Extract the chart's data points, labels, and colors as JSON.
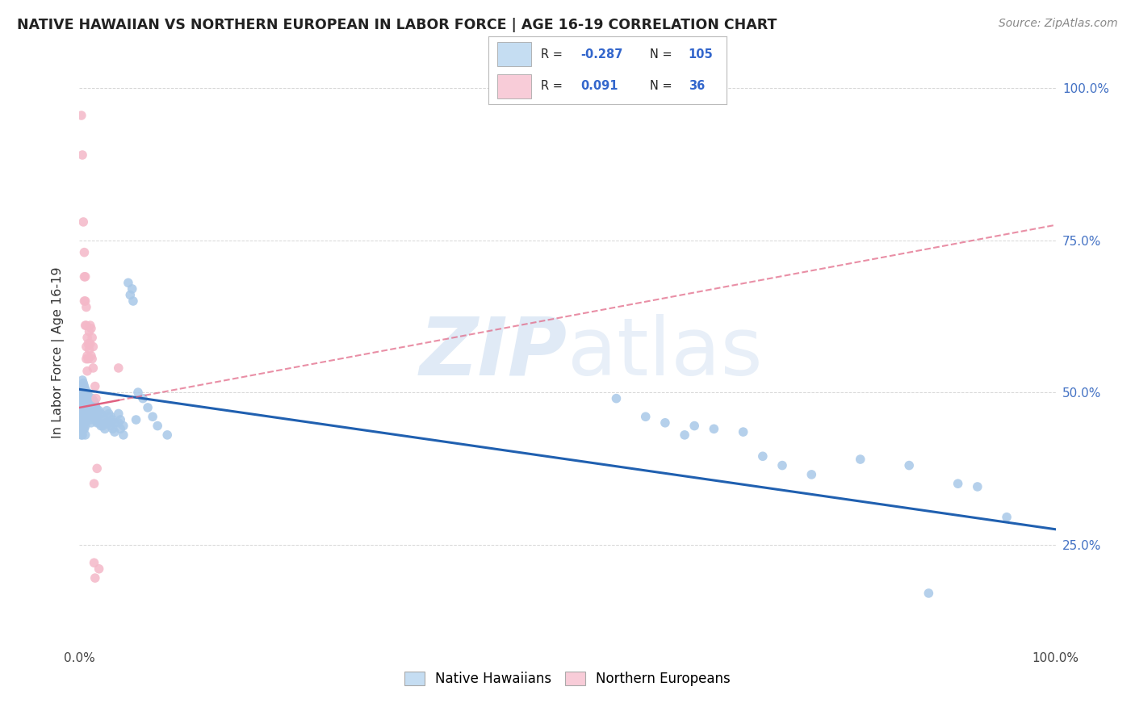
{
  "title": "NATIVE HAWAIIAN VS NORTHERN EUROPEAN IN LABOR FORCE | AGE 16-19 CORRELATION CHART",
  "source": "Source: ZipAtlas.com",
  "ylabel": "In Labor Force | Age 16-19",
  "watermark_zip": "ZIP",
  "watermark_atlas": "atlas",
  "blue_color": "#a8c8e8",
  "pink_color": "#f4b8c8",
  "blue_line_color": "#2060b0",
  "pink_line_color": "#e06080",
  "blue_trend_start": 0.505,
  "blue_trend_end": 0.275,
  "pink_trend_start": 0.475,
  "pink_trend_end": 0.775,
  "blue_scatter": [
    [
      0.001,
      0.485
    ],
    [
      0.001,
      0.475
    ],
    [
      0.001,
      0.465
    ],
    [
      0.001,
      0.455
    ],
    [
      0.002,
      0.51
    ],
    [
      0.002,
      0.495
    ],
    [
      0.002,
      0.48
    ],
    [
      0.002,
      0.465
    ],
    [
      0.002,
      0.45
    ],
    [
      0.002,
      0.44
    ],
    [
      0.002,
      0.43
    ],
    [
      0.003,
      0.52
    ],
    [
      0.003,
      0.505
    ],
    [
      0.003,
      0.49
    ],
    [
      0.003,
      0.475
    ],
    [
      0.003,
      0.46
    ],
    [
      0.003,
      0.445
    ],
    [
      0.003,
      0.43
    ],
    [
      0.004,
      0.515
    ],
    [
      0.004,
      0.5
    ],
    [
      0.004,
      0.485
    ],
    [
      0.004,
      0.47
    ],
    [
      0.004,
      0.455
    ],
    [
      0.004,
      0.44
    ],
    [
      0.005,
      0.51
    ],
    [
      0.005,
      0.495
    ],
    [
      0.005,
      0.48
    ],
    [
      0.005,
      0.465
    ],
    [
      0.005,
      0.45
    ],
    [
      0.005,
      0.44
    ],
    [
      0.006,
      0.505
    ],
    [
      0.006,
      0.49
    ],
    [
      0.006,
      0.475
    ],
    [
      0.006,
      0.46
    ],
    [
      0.006,
      0.445
    ],
    [
      0.006,
      0.43
    ],
    [
      0.007,
      0.5
    ],
    [
      0.007,
      0.485
    ],
    [
      0.007,
      0.47
    ],
    [
      0.007,
      0.455
    ],
    [
      0.008,
      0.5
    ],
    [
      0.008,
      0.49
    ],
    [
      0.008,
      0.48
    ],
    [
      0.008,
      0.465
    ],
    [
      0.009,
      0.495
    ],
    [
      0.009,
      0.475
    ],
    [
      0.009,
      0.46
    ],
    [
      0.01,
      0.49
    ],
    [
      0.01,
      0.475
    ],
    [
      0.01,
      0.46
    ],
    [
      0.011,
      0.485
    ],
    [
      0.011,
      0.47
    ],
    [
      0.011,
      0.455
    ],
    [
      0.012,
      0.48
    ],
    [
      0.012,
      0.465
    ],
    [
      0.012,
      0.45
    ],
    [
      0.013,
      0.49
    ],
    [
      0.013,
      0.475
    ],
    [
      0.013,
      0.46
    ],
    [
      0.014,
      0.485
    ],
    [
      0.014,
      0.47
    ],
    [
      0.015,
      0.485
    ],
    [
      0.015,
      0.465
    ],
    [
      0.016,
      0.48
    ],
    [
      0.016,
      0.46
    ],
    [
      0.017,
      0.475
    ],
    [
      0.017,
      0.455
    ],
    [
      0.018,
      0.47
    ],
    [
      0.018,
      0.45
    ],
    [
      0.019,
      0.465
    ],
    [
      0.02,
      0.47
    ],
    [
      0.02,
      0.45
    ],
    [
      0.022,
      0.465
    ],
    [
      0.022,
      0.445
    ],
    [
      0.024,
      0.46
    ],
    [
      0.024,
      0.445
    ],
    [
      0.026,
      0.455
    ],
    [
      0.026,
      0.44
    ],
    [
      0.028,
      0.47
    ],
    [
      0.028,
      0.45
    ],
    [
      0.03,
      0.465
    ],
    [
      0.03,
      0.45
    ],
    [
      0.032,
      0.46
    ],
    [
      0.032,
      0.445
    ],
    [
      0.034,
      0.455
    ],
    [
      0.034,
      0.44
    ],
    [
      0.036,
      0.45
    ],
    [
      0.036,
      0.435
    ],
    [
      0.04,
      0.465
    ],
    [
      0.04,
      0.45
    ],
    [
      0.042,
      0.455
    ],
    [
      0.042,
      0.44
    ],
    [
      0.045,
      0.445
    ],
    [
      0.045,
      0.43
    ],
    [
      0.05,
      0.68
    ],
    [
      0.052,
      0.66
    ],
    [
      0.054,
      0.67
    ],
    [
      0.055,
      0.65
    ],
    [
      0.058,
      0.455
    ],
    [
      0.06,
      0.5
    ],
    [
      0.065,
      0.49
    ],
    [
      0.07,
      0.475
    ],
    [
      0.075,
      0.46
    ],
    [
      0.08,
      0.445
    ],
    [
      0.09,
      0.43
    ],
    [
      0.55,
      0.49
    ],
    [
      0.58,
      0.46
    ],
    [
      0.6,
      0.45
    ],
    [
      0.62,
      0.43
    ],
    [
      0.63,
      0.445
    ],
    [
      0.65,
      0.44
    ],
    [
      0.68,
      0.435
    ],
    [
      0.7,
      0.395
    ],
    [
      0.72,
      0.38
    ],
    [
      0.75,
      0.365
    ],
    [
      0.8,
      0.39
    ],
    [
      0.85,
      0.38
    ],
    [
      0.87,
      0.17
    ],
    [
      0.9,
      0.35
    ],
    [
      0.92,
      0.345
    ],
    [
      0.95,
      0.295
    ]
  ],
  "pink_scatter": [
    [
      0.002,
      0.955
    ],
    [
      0.003,
      0.89
    ],
    [
      0.004,
      0.78
    ],
    [
      0.005,
      0.73
    ],
    [
      0.005,
      0.69
    ],
    [
      0.005,
      0.65
    ],
    [
      0.006,
      0.69
    ],
    [
      0.006,
      0.65
    ],
    [
      0.006,
      0.61
    ],
    [
      0.007,
      0.64
    ],
    [
      0.007,
      0.61
    ],
    [
      0.007,
      0.575
    ],
    [
      0.007,
      0.555
    ],
    [
      0.008,
      0.59
    ],
    [
      0.008,
      0.56
    ],
    [
      0.008,
      0.535
    ],
    [
      0.009,
      0.58
    ],
    [
      0.009,
      0.555
    ],
    [
      0.01,
      0.6
    ],
    [
      0.01,
      0.57
    ],
    [
      0.011,
      0.61
    ],
    [
      0.011,
      0.58
    ],
    [
      0.012,
      0.605
    ],
    [
      0.012,
      0.56
    ],
    [
      0.013,
      0.59
    ],
    [
      0.013,
      0.555
    ],
    [
      0.014,
      0.575
    ],
    [
      0.014,
      0.54
    ],
    [
      0.015,
      0.35
    ],
    [
      0.015,
      0.22
    ],
    [
      0.016,
      0.51
    ],
    [
      0.016,
      0.195
    ],
    [
      0.017,
      0.49
    ],
    [
      0.018,
      0.375
    ],
    [
      0.02,
      0.21
    ],
    [
      0.04,
      0.54
    ]
  ],
  "xlim": [
    0.0,
    1.0
  ],
  "ylim": [
    0.08,
    1.05
  ],
  "yticks": [
    0.25,
    0.5,
    0.75,
    1.0
  ],
  "xtick_positions": [
    0.0,
    0.1,
    0.2,
    0.3,
    0.4,
    0.5,
    0.6,
    0.7,
    0.8,
    0.9,
    1.0
  ],
  "legend_label_blue": "Native Hawaiians",
  "legend_label_pink": "Northern Europeans",
  "blue_legend_fill": "#c5ddf2",
  "pink_legend_fill": "#f8ccd8"
}
